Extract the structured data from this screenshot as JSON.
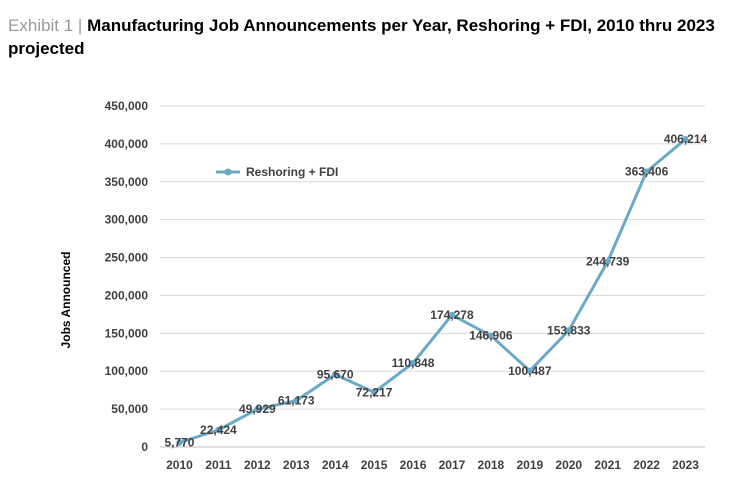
{
  "header": {
    "prefix": "Exhibit 1 |",
    "title": "Manufacturing Job Announcements per Year, Reshoring + FDI, 2010 thru 2023 projected"
  },
  "chart_data": {
    "type": "line",
    "categories": [
      "2010",
      "2011",
      "2012",
      "2013",
      "2014",
      "2015",
      "2016",
      "2017",
      "2018",
      "2019",
      "2020",
      "2021",
      "2022",
      "2023"
    ],
    "series": [
      {
        "name": "Reshoring + FDI",
        "values": [
          5770,
          22424,
          49929,
          61173,
          95670,
          72217,
          110848,
          174278,
          146906,
          100487,
          153833,
          244739,
          363406,
          406214
        ],
        "labels": [
          "5,770",
          "22,424",
          "49,929",
          "61,173",
          "95,670",
          "72,217",
          "110,848",
          "174,278",
          "146,906",
          "100,487",
          "153,833",
          "244,739",
          "363,406",
          "406,214"
        ],
        "color": "#6aaac8"
      }
    ],
    "ylabel": "Jobs Announced",
    "xlabel": "",
    "ylim": [
      0,
      450000
    ],
    "yticks": [
      "0",
      "50,000",
      "100,000",
      "150,000",
      "200,000",
      "250,000",
      "300,000",
      "350,000",
      "400,000",
      "450,000"
    ],
    "grid": true,
    "legend_position": "top-left",
    "gridline_color": "#d9d9d9"
  }
}
